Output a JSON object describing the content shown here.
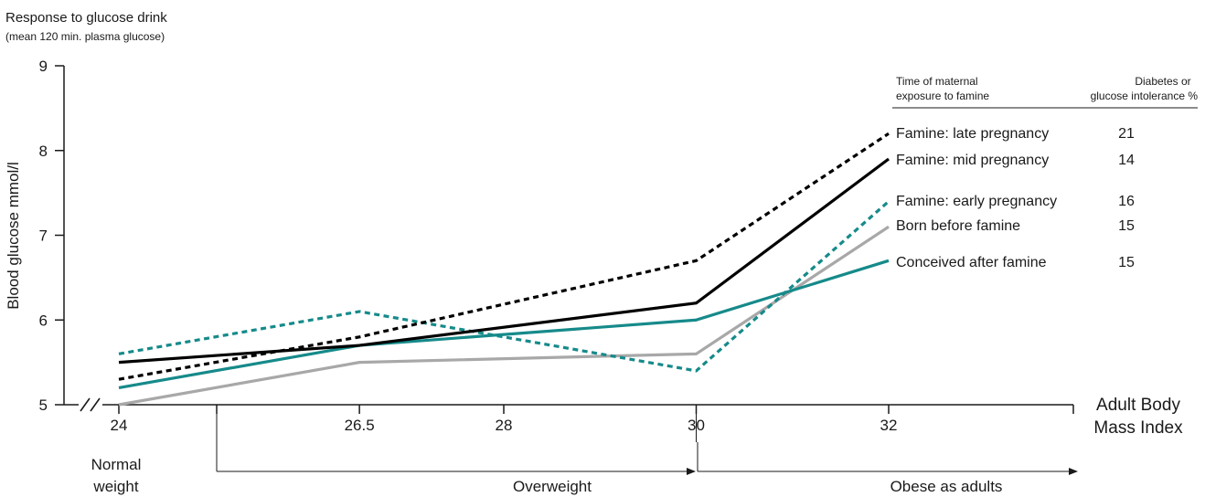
{
  "chart_data": {
    "type": "line",
    "title": "Response to glucose drink",
    "subtitle": "(mean 120 min. plasma glucose)",
    "ylabel": "Blood glucose mmol/l",
    "xlabel_line1": "Adult Body",
    "xlabel_line2": "Mass Index",
    "ylim": [
      5,
      9
    ],
    "xlim": [
      24,
      32
    ],
    "x_ticks": [
      "24",
      "26.5",
      "28",
      "30",
      "32"
    ],
    "x_tick_values": [
      24,
      26.5,
      28,
      30,
      32
    ],
    "y_ticks": [
      "5",
      "6",
      "7",
      "8",
      "9"
    ],
    "y_tick_values": [
      5,
      6,
      7,
      8,
      9
    ],
    "x": [
      24,
      26.5,
      30,
      32
    ],
    "legend_header": {
      "col1_line1": "Time of maternal",
      "col1_line2": "exposure to famine",
      "col2_line1": "Diabetes or",
      "col2_line2": "glucose intolerance %"
    },
    "series": [
      {
        "name": "Famine: late pregnancy",
        "percent": "21",
        "color": "#000000",
        "dash": "dotted",
        "values": [
          5.3,
          5.8,
          6.7,
          8.2
        ]
      },
      {
        "name": "Famine: mid pregnancy",
        "percent": "14",
        "color": "#000000",
        "dash": "solid",
        "values": [
          5.5,
          5.7,
          6.2,
          7.9
        ]
      },
      {
        "name": "Famine: early pregnancy",
        "percent": "16",
        "color": "#168a8a",
        "dash": "dotted",
        "values": [
          5.6,
          6.1,
          5.4,
          7.4
        ]
      },
      {
        "name": "Born before famine",
        "percent": "15",
        "color": "#a8a8a8",
        "dash": "solid",
        "values": [
          5.0,
          5.5,
          5.6,
          7.1
        ]
      },
      {
        "name": "Conceived after famine",
        "percent": "15",
        "color": "#168a8a",
        "dash": "solid",
        "values": [
          5.2,
          5.7,
          6.0,
          6.7
        ]
      }
    ],
    "categories_bands": {
      "normal_line1": "Normal",
      "normal_line2": "weight",
      "overweight": "Overweight",
      "obese": "Obese as adults"
    },
    "legend_placement": "right",
    "grid": false
  }
}
